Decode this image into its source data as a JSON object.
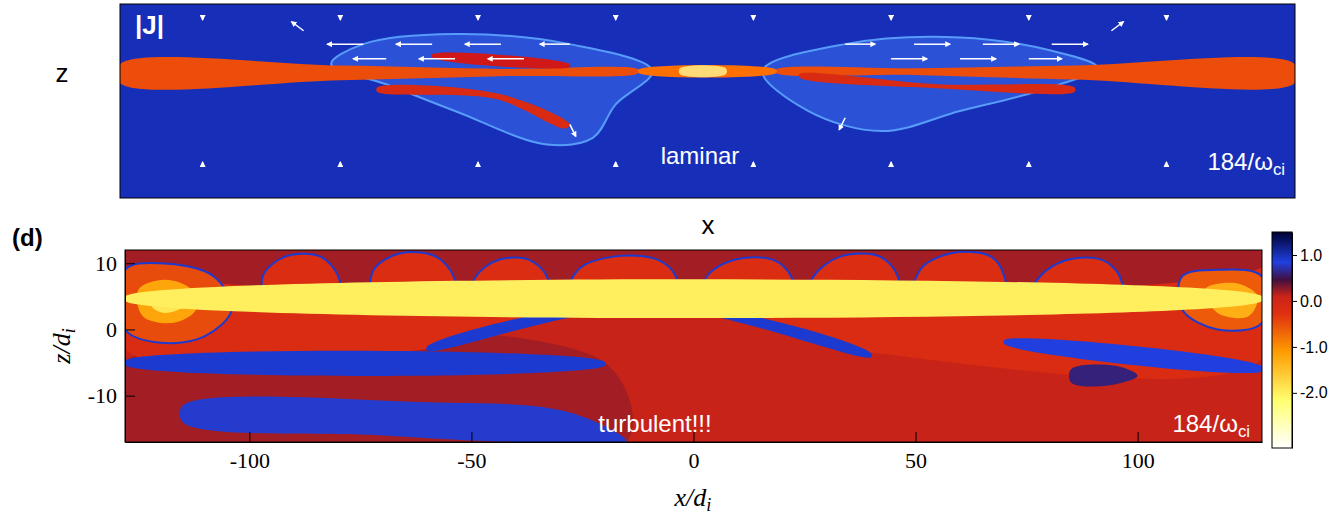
{
  "chart_data": [
    {
      "type": "heatmap",
      "title": "|J|",
      "xlabel": "x",
      "ylabel": "z",
      "xlim": [
        -128,
        128
      ],
      "ylim": [
        -17,
        12
      ],
      "tick_labels": false,
      "color_range": [
        0,
        1
      ],
      "base_value": 0.12,
      "regions": [
        {
          "value": 0.2,
          "edge": 0.33,
          "points": [
            [
              -12,
              2
            ],
            [
              -30,
              6
            ],
            [
              -55,
              7.5
            ],
            [
              -75,
              6
            ],
            [
              -82,
              3
            ],
            [
              -70,
              0
            ],
            [
              -55,
              -4
            ],
            [
              -35,
              -9
            ],
            [
              -25,
              -8
            ],
            [
              -20,
              -3
            ]
          ]
        },
        {
          "value": 0.2,
          "edge": 0.33,
          "points": [
            [
              12,
              2
            ],
            [
              30,
              6
            ],
            [
              55,
              7
            ],
            [
              75,
              5
            ],
            [
              85,
              2.5
            ],
            [
              72,
              -1
            ],
            [
              55,
              -4
            ],
            [
              38,
              -7
            ],
            [
              22,
              -4
            ]
          ]
        },
        {
          "value": 0.7,
          "points": [
            [
              -128,
              3.0
            ],
            [
              -80,
              2.8
            ],
            [
              -45,
              2.3
            ],
            [
              -15,
              2.2
            ],
            [
              -15,
              1.7
            ],
            [
              -45,
              1.2
            ],
            [
              -80,
              0.6
            ],
            [
              -128,
              0.2
            ]
          ]
        },
        {
          "value": 0.7,
          "points": [
            [
              15,
              2.2
            ],
            [
              45,
              2.4
            ],
            [
              80,
              2.8
            ],
            [
              128,
              3.0
            ],
            [
              128,
              0.2
            ],
            [
              80,
              0.7
            ],
            [
              45,
              1.4
            ],
            [
              15,
              1.7
            ]
          ]
        },
        {
          "value": 0.8,
          "points": [
            [
              -15,
              2.2
            ],
            [
              15,
              2.2
            ],
            [
              15,
              1.7
            ],
            [
              -15,
              1.7
            ]
          ]
        },
        {
          "value": 0.6,
          "points": [
            [
              -72,
              -0.5
            ],
            [
              -45,
              -1.5
            ],
            [
              -30,
              -6
            ],
            [
              -31,
              -6.6
            ],
            [
              -46,
              -2.2
            ],
            [
              -72,
              -1.1
            ]
          ]
        },
        {
          "value": 0.55,
          "points": [
            [
              -60,
              4.5
            ],
            [
              -30,
              3.0
            ],
            [
              -30,
              2.6
            ],
            [
              -60,
              4.0
            ]
          ]
        },
        {
          "value": 0.6,
          "points": [
            [
              20,
              1.5
            ],
            [
              50,
              0
            ],
            [
              80,
              -0.5
            ],
            [
              80,
              -1.1
            ],
            [
              50,
              -0.6
            ],
            [
              20,
              1.0
            ]
          ]
        },
        {
          "value": 0.95,
          "points": [
            [
              -6,
              2.4
            ],
            [
              4,
              2.4
            ],
            [
              4,
              1.5
            ],
            [
              -6,
              1.5
            ]
          ]
        }
      ],
      "vectors": {
        "x": [
          -75,
          -60,
          -45,
          -30,
          30,
          45,
          60,
          75,
          -70,
          -55,
          -40,
          40,
          55,
          70,
          -88,
          88,
          -30,
          30,
          -110,
          -80,
          -50,
          -20,
          10,
          40,
          70,
          100,
          -110,
          -80,
          -50,
          -20,
          10,
          40,
          70,
          100
        ],
        "z": [
          6,
          6,
          6,
          6,
          6,
          6,
          6,
          6,
          3.8,
          3.8,
          3.8,
          3.8,
          3.8,
          3.8,
          8,
          8,
          -6,
          -5,
          -12,
          -12,
          -12,
          -12,
          -12,
          -12,
          -12,
          -12,
          10,
          10,
          10,
          10,
          10,
          10,
          10,
          10
        ],
        "u": [
          -12,
          -12,
          -12,
          -10,
          10,
          12,
          12,
          12,
          -11,
          -12,
          -12,
          12,
          12,
          11,
          -4,
          4,
          2,
          -2,
          0,
          0,
          0,
          0,
          0,
          0,
          0,
          0,
          0,
          0,
          0,
          0,
          0,
          0,
          0,
          0
        ],
        "w": [
          0,
          0,
          0,
          0,
          0,
          0,
          0,
          0,
          0,
          0,
          0,
          0,
          0,
          0,
          3,
          3,
          -4,
          -4,
          0.8,
          0.8,
          0.8,
          0.8,
          0.8,
          0.8,
          0.8,
          0.8,
          -0.8,
          -0.8,
          -0.8,
          -0.8,
          -0.8,
          -0.8,
          -0.8,
          -0.8
        ]
      },
      "annotations": [
        {
          "text": "laminar"
        },
        {
          "text": "184/ω",
          "sub": "ci"
        }
      ]
    },
    {
      "type": "heatmap",
      "label": "(d)",
      "xlabel": {
        "text": "x/d",
        "sub": "i"
      },
      "ylabel": {
        "text": "z/d",
        "sub": "i"
      },
      "xlim": [
        -128,
        128
      ],
      "xticks": [
        -100,
        -50,
        0,
        50,
        100
      ],
      "ylim": [
        -17,
        12
      ],
      "yticks": [
        -10,
        0,
        10
      ],
      "colorbar": {
        "range": [
          -3.2,
          1.5
        ],
        "ticks": [
          {
            "value": 1,
            "label": "1.0"
          },
          {
            "value": 0,
            "label": "0.0"
          },
          {
            "value": -1,
            "label": "-1.0"
          },
          {
            "value": -2,
            "label": "-2.0"
          }
        ]
      },
      "base_value": 0.1,
      "regions": [
        {
          "value": 0.2,
          "points": [
            [
              -128,
              -5
            ],
            [
              -20,
              -5
            ],
            [
              -15,
              -17
            ],
            [
              -128,
              -17
            ]
          ]
        },
        {
          "value": -0.15,
          "points": [
            [
              -128,
              9
            ],
            [
              -128,
              -3
            ],
            [
              -60,
              -3
            ],
            [
              -10,
              4
            ],
            [
              40,
              -3.5
            ],
            [
              128,
              -4.5
            ],
            [
              128,
              9
            ]
          ]
        },
        {
          "value": 0.2,
          "points": [
            [
              -128,
              12
            ],
            [
              128,
              12
            ],
            [
              128,
              9.5
            ],
            [
              -128,
              9.5
            ]
          ]
        },
        {
          "value": -0.2,
          "edge": 0.9,
          "points": [
            [
              -96,
              5
            ],
            [
              -97,
              8
            ],
            [
              -92,
              11
            ],
            [
              -84,
              11
            ],
            [
              -80,
              8
            ],
            [
              -80,
              5
            ]
          ]
        },
        {
          "value": -0.2,
          "edge": 0.9,
          "points": [
            [
              -72,
              5
            ],
            [
              -72,
              9
            ],
            [
              -66,
              11.5
            ],
            [
              -58,
              11
            ],
            [
              -54,
              8
            ],
            [
              -54,
              5
            ]
          ]
        },
        {
          "value": -0.2,
          "edge": 0.9,
          "points": [
            [
              -50,
              5
            ],
            [
              -49,
              8
            ],
            [
              -44,
              10.5
            ],
            [
              -37,
              10.5
            ],
            [
              -33,
              8
            ],
            [
              -33,
              5
            ]
          ]
        },
        {
          "value": -0.2,
          "edge": 0.9,
          "points": [
            [
              -28,
              5
            ],
            [
              -26,
              9
            ],
            [
              -18,
              11
            ],
            [
              -8,
              10.5
            ],
            [
              -4,
              8
            ],
            [
              -4,
              5
            ]
          ]
        },
        {
          "value": -0.2,
          "edge": 0.9,
          "points": [
            [
              2,
              5
            ],
            [
              3,
              8
            ],
            [
              9,
              10.5
            ],
            [
              18,
              10.5
            ],
            [
              22,
              8
            ],
            [
              22,
              5
            ]
          ]
        },
        {
          "value": -0.2,
          "edge": 0.9,
          "points": [
            [
              26,
              5
            ],
            [
              27,
              8
            ],
            [
              33,
              11
            ],
            [
              42,
              11
            ],
            [
              46,
              8
            ],
            [
              46,
              5
            ]
          ]
        },
        {
          "value": -0.2,
          "edge": 0.9,
          "points": [
            [
              50,
              5
            ],
            [
              51,
              9
            ],
            [
              58,
              11.5
            ],
            [
              67,
              11
            ],
            [
              70,
              8
            ],
            [
              70,
              5
            ]
          ]
        },
        {
          "value": -0.2,
          "edge": 0.9,
          "points": [
            [
              76,
              5
            ],
            [
              78,
              8
            ],
            [
              84,
              10.5
            ],
            [
              92,
              10.5
            ],
            [
              96,
              8
            ],
            [
              96,
              5
            ]
          ]
        },
        {
          "value": -0.5,
          "edge": 0.9,
          "points": [
            [
              -128,
              9
            ],
            [
              -120,
              10
            ],
            [
              -108,
              8
            ],
            [
              -104,
              3
            ],
            [
              -110,
              -1
            ],
            [
              -120,
              -2
            ],
            [
              -128,
              0
            ]
          ]
        },
        {
          "value": -1.2,
          "points": [
            [
              -125,
              6
            ],
            [
              -119,
              7.5
            ],
            [
              -113,
              6
            ],
            [
              -112,
              3
            ],
            [
              -117,
              1
            ],
            [
              -124,
              2
            ]
          ]
        },
        {
          "value": -1.9,
          "points": [
            [
              -121,
              5
            ],
            [
              -117,
              5.5
            ],
            [
              -115,
              3.5
            ],
            [
              -119,
              2.5
            ],
            [
              -122,
              3.5
            ]
          ]
        },
        {
          "value": -0.6,
          "edge": 0.9,
          "points": [
            [
              110,
              8
            ],
            [
              118,
              9
            ],
            [
              128,
              8
            ],
            [
              128,
              1
            ],
            [
              118,
              0
            ],
            [
              110,
              3
            ]
          ]
        },
        {
          "value": -1.3,
          "points": [
            [
              115,
              6
            ],
            [
              122,
              7
            ],
            [
              127,
              5
            ],
            [
              125,
              2
            ],
            [
              118,
              2.5
            ]
          ]
        },
        {
          "value": 0.9,
          "points": [
            [
              -128,
              -4.7
            ],
            [
              -20,
              -4.9
            ],
            [
              -20,
              -5.5
            ],
            [
              -128,
              -5.4
            ]
          ]
        },
        {
          "value": 0.9,
          "points": [
            [
              -60,
              -2.6
            ],
            [
              -10,
              4.3
            ],
            [
              40,
              -3.6
            ],
            [
              40,
              -4.2
            ],
            [
              -10,
              3.4
            ],
            [
              -60,
              -3.2
            ]
          ]
        },
        {
          "value": 0.8,
          "points": [
            [
              -115,
              -11.5
            ],
            [
              -60,
              -11
            ],
            [
              -28,
              -12.5
            ],
            [
              -15,
              -17
            ],
            [
              -40,
              -17
            ],
            [
              -70,
              -16
            ],
            [
              -115,
              -14
            ]
          ]
        },
        {
          "value": 0.85,
          "points": [
            [
              70,
              -1.6
            ],
            [
              128,
              -5.6
            ],
            [
              128,
              -6.3
            ],
            [
              70,
              -2.2
            ]
          ]
        },
        {
          "value": 0.6,
          "points": [
            [
              85,
              -6
            ],
            [
              95,
              -5.5
            ],
            [
              100,
              -7
            ],
            [
              93,
              -8.5
            ],
            [
              85,
              -8
            ]
          ]
        },
        {
          "value": -2.0,
          "points": [
            [
              -128,
              5.0
            ],
            [
              128,
              5.0
            ],
            [
              128,
              4.3
            ],
            [
              -128,
              4.3
            ]
          ]
        }
      ],
      "annotations": [
        {
          "text": "turbulent!!!"
        },
        {
          "text": "184/ω",
          "sub": "ci"
        }
      ]
    }
  ]
}
